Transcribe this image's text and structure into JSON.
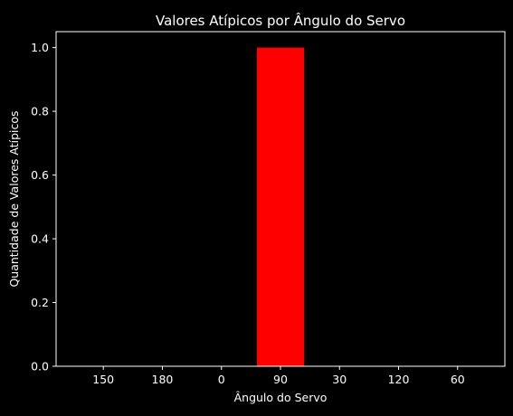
{
  "chart_data": {
    "type": "bar",
    "title": "Valores Atípicos por Ângulo do Servo",
    "xlabel": "Ângulo do Servo",
    "ylabel": "Quantidade de Valores Atípicos",
    "categories": [
      "150",
      "180",
      "0",
      "90",
      "30",
      "120",
      "60"
    ],
    "values": [
      0,
      0,
      0,
      1,
      0,
      0,
      0
    ],
    "ylim": [
      0,
      1.05
    ],
    "yticks": [
      "0.0",
      "0.2",
      "0.4",
      "0.6",
      "0.8",
      "1.0"
    ],
    "grid": false,
    "colors": {
      "bar": "#ff0000",
      "background": "#000000",
      "foreground": "#ffffff"
    }
  }
}
